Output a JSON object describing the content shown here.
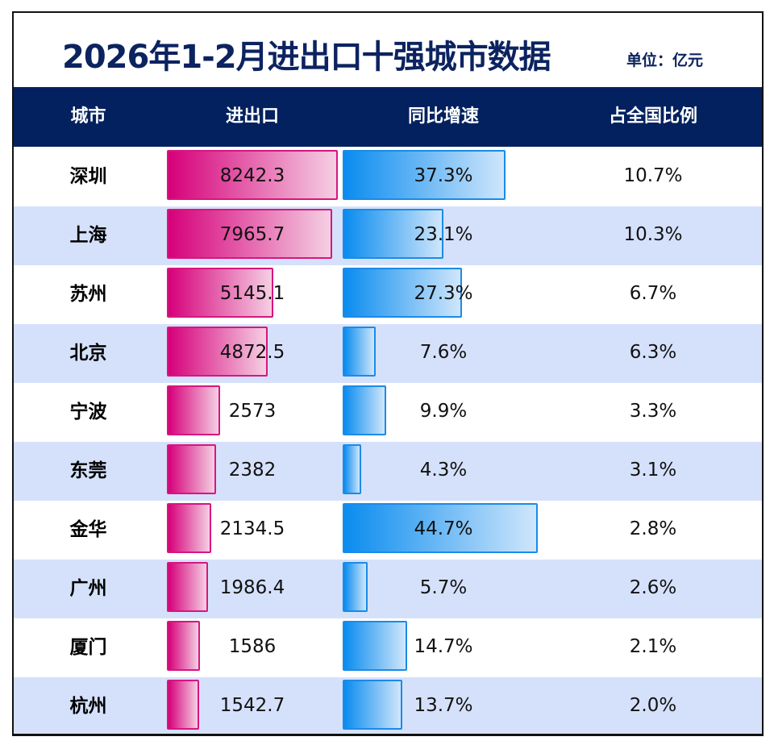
{
  "title": "2026年1-2月进出口十强城市数据",
  "unit": "单位：亿元",
  "headers": [
    "城市",
    "进出口",
    "同比增速",
    "占全国比例"
  ],
  "colors": {
    "header_bg": "#03215e",
    "title": "#0c2360",
    "alt_row": "#d5e1fb",
    "export_bar": "#d6007a",
    "growth_bar": "#0a8cef"
  },
  "chart_data": {
    "type": "table",
    "columns": [
      "城市",
      "进出口",
      "同比增速",
      "占全国比例"
    ],
    "rows": [
      {
        "city": "深圳",
        "trade": "8242.3",
        "growth": "37.3%",
        "share": "10.7%"
      },
      {
        "city": "上海",
        "trade": "7965.7",
        "growth": "23.1%",
        "share": "10.3%"
      },
      {
        "city": "苏州",
        "trade": "5145.1",
        "growth": "27.3%",
        "share": "6.7%"
      },
      {
        "city": "北京",
        "trade": "4872.5",
        "growth": "7.6%",
        "share": "6.3%"
      },
      {
        "city": "宁波",
        "trade": "2573",
        "growth": "9.9%",
        "share": "3.3%"
      },
      {
        "city": "东莞",
        "trade": "2382",
        "growth": "4.3%",
        "share": "3.1%"
      },
      {
        "city": "金华",
        "trade": "2134.5",
        "growth": "44.7%",
        "share": "2.8%"
      },
      {
        "city": "广州",
        "trade": "1986.4",
        "growth": "5.7%",
        "share": "2.6%"
      },
      {
        "city": "厦门",
        "trade": "1586",
        "growth": "14.7%",
        "share": "2.1%"
      },
      {
        "city": "杭州",
        "trade": "1542.7",
        "growth": "13.7%",
        "share": "2.0%"
      }
    ]
  }
}
